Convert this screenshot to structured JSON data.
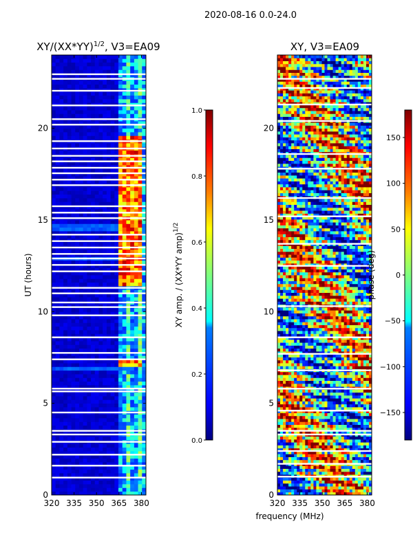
{
  "figure_title": "2020-08-16 0.0-24.0",
  "colors": {
    "jet": [
      "#00007f",
      "#0000ff",
      "#007fff",
      "#00ffff",
      "#7fff7f",
      "#ffff00",
      "#ff7f00",
      "#ff0000",
      "#7f0000"
    ]
  },
  "chart_data": [
    {
      "type": "heatmap",
      "title_main": "XY/(XX*YY)",
      "title_sup": "1/2",
      "title_rest": ", V3=EA09",
      "ylabel": "UT (hours)",
      "xlabel": "",
      "xlim": [
        320,
        383
      ],
      "ylim": [
        0,
        24
      ],
      "xticks": [
        320,
        335,
        350,
        365,
        380
      ],
      "yticks": [
        0,
        5,
        10,
        15,
        20
      ],
      "colorbar": {
        "label_main": "XY amp. / (XX*YY amp)",
        "label_sup": "1/2",
        "range": [
          0.0,
          1.0
        ],
        "ticks": [
          "0.0",
          "0.2",
          "0.4",
          "0.6",
          "0.8",
          "1.0"
        ]
      },
      "gap_times_ut": [
        0.95,
        1.6,
        2.2,
        2.9,
        3.3,
        3.5,
        4.5,
        5.65,
        5.8,
        7.4,
        7.75,
        8.6,
        9.8,
        10.25,
        10.5,
        11.0,
        11.3,
        12.2,
        12.55,
        12.9,
        13.15,
        13.5,
        13.85,
        14.2,
        15.1,
        15.4,
        15.75,
        16.9,
        17.2,
        17.55,
        17.85,
        18.2,
        18.5,
        18.9,
        19.3,
        20.2,
        20.5,
        21.25,
        22.05,
        22.7,
        22.95
      ],
      "high_band_mhz": [
        364,
        383
      ],
      "high_ut_ranges": [
        [
          6.9,
          7.3
        ],
        [
          11.5,
          19.5
        ]
      ]
    },
    {
      "type": "heatmap",
      "title": "XY, V3=EA09",
      "xlabel": "frequency (MHz)",
      "ylabel": "",
      "xlim": [
        320,
        383
      ],
      "ylim": [
        0,
        24
      ],
      "xticks": [
        320,
        335,
        350,
        365,
        380
      ],
      "yticks": [
        0,
        5,
        10,
        15,
        20
      ],
      "colorbar": {
        "label": "phase (deg)",
        "range": [
          -180,
          180
        ],
        "ticks": [
          "−150",
          "−100",
          "−50",
          "0",
          "50",
          "100",
          "150"
        ]
      },
      "gap_times_ut": [
        1.0,
        1.7,
        2.4,
        3.3,
        3.5,
        4.6,
        5.8,
        6.8,
        7.7,
        8.6,
        10.3,
        12.5,
        13.7,
        15.2,
        16.2,
        17.8,
        18.6,
        20.4,
        21.3,
        22.2,
        22.7
      ]
    }
  ]
}
